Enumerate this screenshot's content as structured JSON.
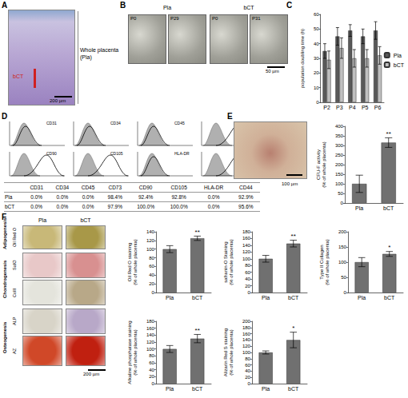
{
  "figure": {
    "panel_labels": [
      "A",
      "B",
      "C",
      "D",
      "E",
      "F"
    ],
    "A": {
      "label_whole": "Whole placenta (Pla)",
      "label_region": "bCT",
      "scale": "200 µm"
    },
    "B": {
      "groups": [
        {
          "name": "Pla",
          "images": [
            "P0",
            "P29"
          ]
        },
        {
          "name": "bCT",
          "images": [
            "P0",
            "P31"
          ]
        }
      ],
      "scale": "50 µm"
    },
    "D": {
      "table": {
        "columns": [
          "CD31",
          "CD34",
          "CD45",
          "CD73",
          "CD90",
          "CD105",
          "HLA-DR",
          "CD44"
        ],
        "rows": [
          {
            "name": "Pla",
            "values": [
              "0.0%",
              "0.0%",
              "0.0%",
              "98.4%",
              "92.4%",
              "92.8%",
              "0.0%",
              "92.9%"
            ]
          },
          {
            "name": "bCT",
            "values": [
              "0.0%",
              "0.0%",
              "0.0%",
              "97.9%",
              "100.0%",
              "100.0%",
              "0.0%",
              "95.6%"
            ]
          }
        ]
      }
    },
    "E": {
      "scale": "100 µm"
    },
    "F": {
      "columns": [
        "Pla",
        "bCT"
      ],
      "rows": [
        {
          "group": "Adipogenesis",
          "stains": [
            "Oil Red O"
          ]
        },
        {
          "group": "Chondrogenesis",
          "stains": [
            "SafO",
            "ColII"
          ]
        },
        {
          "group": "Osteogenesis",
          "stains": [
            "ALP",
            "AZ"
          ]
        }
      ],
      "scale": "200 µm"
    }
  },
  "chart_data": [
    {
      "type": "bar",
      "y_label": "population doubling time (h)",
      "categories": [
        "P2",
        "P3",
        "P4",
        "P5",
        "P6"
      ],
      "series": [
        {
          "name": "Pla",
          "color": "#595959",
          "values": [
            35,
            45,
            49,
            45,
            49
          ],
          "errors": [
            5,
            6,
            4,
            5,
            6
          ]
        },
        {
          "name": "bCT",
          "color": "#c0c0c0",
          "values": [
            29,
            37,
            30,
            30,
            32
          ],
          "errors": [
            6,
            7,
            6,
            6,
            6
          ]
        }
      ],
      "ylim": [
        0,
        60
      ],
      "yticks": [
        0,
        10,
        20,
        30,
        40,
        50,
        60
      ],
      "legend": "right",
      "grid": false
    },
    {
      "type": "bar",
      "y_label": "CFU-F activity\n(% of whole placenta)",
      "categories": [
        "Pla",
        "bCT"
      ],
      "values": [
        100,
        315
      ],
      "errors": [
        45,
        25
      ],
      "color": "#707070",
      "annotations": [
        {
          "category": "bCT",
          "text": "**"
        }
      ],
      "ylim": [
        0,
        400
      ],
      "yticks": [
        0,
        50,
        100,
        150,
        200,
        250,
        300,
        350,
        400
      ],
      "grid": false
    },
    {
      "type": "bar",
      "y_label": "Oil Red O staining\n(% of whole placenta)",
      "categories": [
        "Pla",
        "bCT"
      ],
      "values": [
        100,
        125
      ],
      "errors": [
        8,
        5
      ],
      "color": "#707070",
      "annotations": [
        {
          "category": "bCT",
          "text": "**"
        }
      ],
      "ylim": [
        0,
        140
      ],
      "yticks": [
        0,
        20,
        40,
        60,
        80,
        100,
        120,
        140
      ],
      "grid": false
    },
    {
      "type": "bar",
      "y_label": "safranin-O Staining\n(% of whole placenta)",
      "categories": [
        "Pla",
        "bCT"
      ],
      "values": [
        100,
        145
      ],
      "errors": [
        10,
        10
      ],
      "color": "#707070",
      "annotations": [
        {
          "category": "bCT",
          "text": "**"
        }
      ],
      "ylim": [
        0,
        180
      ],
      "yticks": [
        0,
        20,
        40,
        60,
        80,
        100,
        120,
        140,
        160,
        180
      ],
      "grid": false
    },
    {
      "type": "bar",
      "y_label": "Type II Collagen\n(% of whole placenta)",
      "categories": [
        "Pla",
        "bCT"
      ],
      "values": [
        100,
        127
      ],
      "errors": [
        15,
        8
      ],
      "color": "#707070",
      "annotations": [
        {
          "category": "bCT",
          "text": "*"
        }
      ],
      "ylim": [
        0,
        200
      ],
      "yticks": [
        0,
        50,
        100,
        150,
        200
      ],
      "grid": false
    },
    {
      "type": "bar",
      "y_label": "Alkaline phosphatase staining\n(% of whole placenta)",
      "categories": [
        "Pla",
        "bCT"
      ],
      "values": [
        100,
        130
      ],
      "errors": [
        10,
        12
      ],
      "color": "#707070",
      "annotations": [
        {
          "category": "bCT",
          "text": "**"
        }
      ],
      "ylim": [
        0,
        180
      ],
      "yticks": [
        0,
        20,
        40,
        60,
        80,
        100,
        120,
        140,
        160,
        180
      ],
      "grid": false
    },
    {
      "type": "bar",
      "y_label": "Alizarin Red S staining\n(% of whole placenta)",
      "categories": [
        "Pla",
        "bCT"
      ],
      "values": [
        100,
        140
      ],
      "errors": [
        5,
        25
      ],
      "color": "#707070",
      "annotations": [
        {
          "category": "bCT",
          "text": "*"
        }
      ],
      "ylim": [
        0,
        200
      ],
      "yticks": [
        0,
        20,
        40,
        60,
        80,
        100,
        120,
        140,
        160,
        180,
        200
      ],
      "grid": false
    }
  ]
}
